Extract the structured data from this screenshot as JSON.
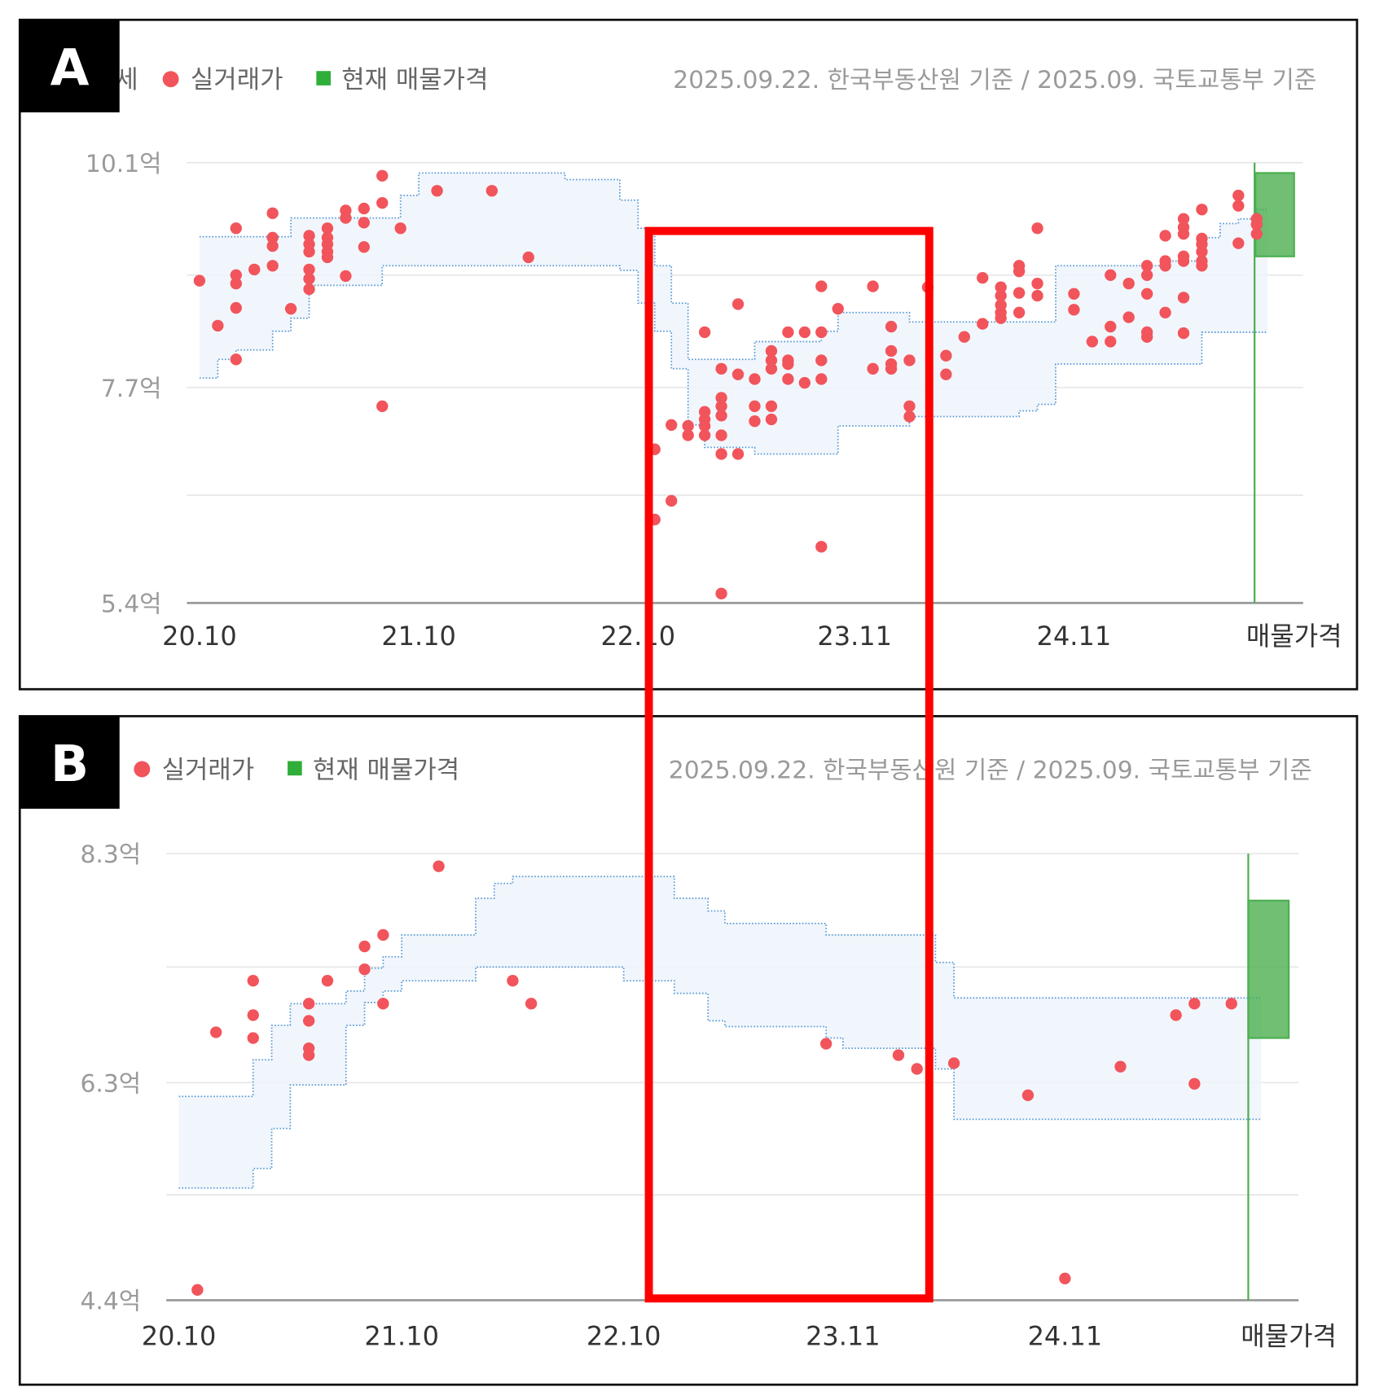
{
  "colors": {
    "trade_dot": "#f2545b",
    "listing": "#4caf50",
    "band_line": "#5b9bd5",
    "band_fill": "#eef4fc",
    "annotation": "#ff0000",
    "panel_label_bg": "#000000"
  },
  "annotation": {
    "type": "highlight-rectangle",
    "color": "#ff0000",
    "date_range": [
      "2022-10",
      "2024-03"
    ]
  },
  "chart_data": [
    {
      "type": "scatter",
      "panel_label": "A",
      "legend": {
        "band": "세",
        "trade": "실거래가",
        "listing": "현재 매물가격",
        "placement": "top-left"
      },
      "source_note": "2025.09.22. 한국부동산원 기준 / 2025.09. 국토교통부 기준",
      "y_unit": "억",
      "ylim": [
        5.4,
        10.1
      ],
      "y_ticks": [
        {
          "value": 10.1,
          "label": "10.1억"
        },
        {
          "value": 7.7,
          "label": "7.7억"
        },
        {
          "value": 5.4,
          "label": "5.4억"
        }
      ],
      "grid_values": [
        10.1,
        8.9,
        7.7,
        6.55,
        5.4
      ],
      "grid": true,
      "x_ticks": [
        {
          "date": "2020-10",
          "label": "20.10"
        },
        {
          "date": "2021-10",
          "label": "21.10"
        },
        {
          "date": "2022-10",
          "label": "22.10"
        },
        {
          "date": "2023-11",
          "label": "23.11"
        },
        {
          "date": "2024-11",
          "label": "24.11"
        }
      ],
      "listing_label": "매물가격",
      "listing_range": [
        9.1,
        9.99
      ],
      "trades": [
        [
          "2020-10",
          [
            8.84
          ]
        ],
        [
          "2020-11",
          [
            8.36
          ]
        ],
        [
          "2020-12",
          [
            9.4,
            8.9,
            8.81,
            8.55,
            8.0
          ]
        ],
        [
          "2021-01",
          [
            8.96
          ]
        ],
        [
          "2021-02",
          [
            9.56,
            9.3,
            9.21,
            9.0
          ]
        ],
        [
          "2021-03",
          [
            8.54
          ]
        ],
        [
          "2021-04",
          [
            9.32,
            9.23,
            9.15,
            8.96,
            8.86,
            8.75
          ]
        ],
        [
          "2021-05",
          [
            9.4,
            9.3,
            9.23,
            9.15,
            9.09
          ]
        ],
        [
          "2021-06",
          [
            9.59,
            9.51,
            8.89
          ]
        ],
        [
          "2021-07",
          [
            9.61,
            9.46,
            9.2
          ]
        ],
        [
          "2021-08",
          [
            9.96,
            9.67,
            7.5
          ]
        ],
        [
          "2021-09",
          [
            9.4
          ]
        ],
        [
          "2021-11",
          [
            9.8
          ]
        ],
        [
          "2022-02",
          [
            9.8
          ]
        ],
        [
          "2022-04",
          [
            9.09
          ]
        ],
        [
          "2022-11",
          [
            7.04,
            6.29
          ]
        ],
        [
          "2022-12",
          [
            7.3,
            6.49
          ]
        ],
        [
          "2023-01",
          [
            7.29,
            7.19
          ]
        ],
        [
          "2023-02",
          [
            8.29,
            7.44,
            7.36,
            7.29,
            7.19
          ]
        ],
        [
          "2023-03",
          [
            7.9,
            7.59,
            7.5,
            7.4,
            7.19,
            6.99,
            5.5
          ]
        ],
        [
          "2023-04",
          [
            8.59,
            7.84,
            6.99
          ]
        ],
        [
          "2023-05",
          [
            7.79,
            7.5,
            7.34
          ]
        ],
        [
          "2023-06",
          [
            8.09,
            7.99,
            7.9,
            7.5,
            7.36
          ]
        ],
        [
          "2023-07",
          [
            8.29,
            7.99,
            7.95,
            7.79
          ]
        ],
        [
          "2023-08",
          [
            8.29,
            7.75
          ]
        ],
        [
          "2023-09",
          [
            8.78,
            8.29,
            7.99,
            7.79,
            6.0
          ]
        ],
        [
          "2023-10",
          [
            8.54
          ]
        ],
        [
          "2023-12",
          [
            8.78,
            7.9
          ]
        ],
        [
          "2024-01",
          [
            8.35,
            8.09,
            7.95,
            7.9
          ]
        ],
        [
          "2024-02",
          [
            7.99,
            7.5,
            7.39
          ]
        ],
        [
          "2024-03",
          [
            8.77
          ]
        ],
        [
          "2024-04",
          [
            8.04,
            7.84
          ]
        ],
        [
          "2024-05",
          [
            8.24
          ]
        ],
        [
          "2024-06",
          [
            8.87,
            8.38
          ]
        ],
        [
          "2024-07",
          [
            8.77,
            8.68,
            8.58,
            8.5,
            8.44
          ]
        ],
        [
          "2024-08",
          [
            9.0,
            8.94,
            8.71,
            8.5
          ]
        ],
        [
          "2024-09",
          [
            9.4,
            8.81,
            8.68
          ]
        ],
        [
          "2024-11",
          [
            8.7,
            8.53
          ]
        ],
        [
          "2024-12",
          [
            8.19
          ]
        ],
        [
          "2025-01",
          [
            8.9,
            8.35,
            8.19
          ]
        ],
        [
          "2025-02",
          [
            8.81,
            8.45
          ]
        ],
        [
          "2025-03",
          [
            9.0,
            8.9,
            8.7,
            8.29,
            8.24
          ]
        ],
        [
          "2025-04",
          [
            9.32,
            9.05,
            9.0,
            8.5
          ]
        ],
        [
          "2025-05",
          [
            9.5,
            9.41,
            9.34,
            9.1,
            9.05,
            8.66,
            8.28
          ]
        ],
        [
          "2025-06",
          [
            9.6,
            9.29,
            9.23,
            9.15,
            9.05,
            9.0
          ]
        ],
        [
          "2025-08",
          [
            9.75,
            9.64,
            9.24
          ]
        ],
        [
          "2025-09",
          [
            9.5,
            9.44,
            9.34
          ]
        ]
      ],
      "band": [
        [
          "2020-10",
          9.31,
          7.8
        ],
        [
          "2020-11",
          9.31,
          8.0
        ],
        [
          "2020-12",
          9.31,
          8.1
        ],
        [
          "2021-01",
          9.31,
          8.1
        ],
        [
          "2021-02",
          9.31,
          8.3
        ],
        [
          "2021-03",
          9.51,
          8.44
        ],
        [
          "2021-04",
          9.51,
          8.79
        ],
        [
          "2021-05",
          9.51,
          8.79
        ],
        [
          "2021-06",
          9.51,
          8.79
        ],
        [
          "2021-07",
          9.51,
          8.79
        ],
        [
          "2021-08",
          9.51,
          9.0
        ],
        [
          "2021-09",
          9.75,
          9.0
        ],
        [
          "2021-10",
          9.99,
          9.0
        ],
        [
          "2021-11",
          9.99,
          9.0
        ],
        [
          "2021-12",
          9.99,
          9.0
        ],
        [
          "2022-01",
          9.99,
          9.0
        ],
        [
          "2022-02",
          9.99,
          9.0
        ],
        [
          "2022-03",
          9.99,
          9.0
        ],
        [
          "2022-04",
          9.99,
          9.0
        ],
        [
          "2022-05",
          9.99,
          9.0
        ],
        [
          "2022-06",
          9.92,
          9.0
        ],
        [
          "2022-07",
          9.92,
          9.0
        ],
        [
          "2022-08",
          9.92,
          9.0
        ],
        [
          "2022-09",
          9.7,
          8.95
        ],
        [
          "2022-10",
          9.4,
          8.6
        ],
        [
          "2022-11",
          9.0,
          8.3
        ],
        [
          "2022-12",
          8.6,
          7.9
        ],
        [
          "2023-01",
          8.0,
          7.3
        ],
        [
          "2023-02",
          8.0,
          7.06
        ],
        [
          "2023-03",
          8.0,
          7.06
        ],
        [
          "2023-04",
          8.0,
          7.06
        ],
        [
          "2023-05",
          8.19,
          6.99
        ],
        [
          "2023-06",
          8.19,
          6.99
        ],
        [
          "2023-07",
          8.19,
          6.99
        ],
        [
          "2023-08",
          8.19,
          6.99
        ],
        [
          "2023-09",
          8.3,
          6.99
        ],
        [
          "2023-10",
          8.5,
          7.29
        ],
        [
          "2023-11",
          8.5,
          7.29
        ],
        [
          "2023-12",
          8.5,
          7.29
        ],
        [
          "2024-01",
          8.5,
          7.29
        ],
        [
          "2024-02",
          8.4,
          7.39
        ],
        [
          "2024-03",
          8.4,
          7.39
        ],
        [
          "2024-04",
          8.4,
          7.39
        ],
        [
          "2024-05",
          8.4,
          7.39
        ],
        [
          "2024-06",
          8.4,
          7.39
        ],
        [
          "2024-07",
          8.4,
          7.39
        ],
        [
          "2024-08",
          8.4,
          7.45
        ],
        [
          "2024-09",
          8.4,
          7.52
        ],
        [
          "2024-10",
          9.0,
          7.95
        ],
        [
          "2024-11",
          9.0,
          7.95
        ],
        [
          "2024-12",
          9.0,
          7.95
        ],
        [
          "2025-01",
          9.0,
          7.95
        ],
        [
          "2025-02",
          9.0,
          7.95
        ],
        [
          "2025-03",
          9.0,
          7.95
        ],
        [
          "2025-04",
          9.05,
          7.95
        ],
        [
          "2025-05",
          9.05,
          7.95
        ],
        [
          "2025-06",
          9.3,
          8.29
        ],
        [
          "2025-07",
          9.45,
          8.29
        ],
        [
          "2025-08",
          9.5,
          8.29
        ],
        [
          "2025-09",
          9.6,
          8.29
        ]
      ]
    },
    {
      "type": "scatter",
      "panel_label": "B",
      "legend": {
        "trade": "실거래가",
        "listing": "현재 매물가격",
        "placement": "top-left"
      },
      "source_note": "2025.09.22. 한국부동산원 기준 / 2025.09. 국토교통부 기준",
      "y_unit": "억",
      "ylim": [
        4.4,
        8.3
      ],
      "y_ticks": [
        {
          "value": 8.3,
          "label": "8.3억"
        },
        {
          "value": 6.3,
          "label": "6.3억"
        },
        {
          "value": 4.4,
          "label": "4.4억"
        }
      ],
      "grid_values": [
        8.3,
        7.31,
        6.3,
        5.32,
        4.4
      ],
      "grid": true,
      "x_ticks": [
        {
          "date": "2020-10",
          "label": "20.10"
        },
        {
          "date": "2021-10",
          "label": "21.10"
        },
        {
          "date": "2022-10",
          "label": "22.10"
        },
        {
          "date": "2023-11",
          "label": "23.11"
        },
        {
          "date": "2024-11",
          "label": "24.11"
        }
      ],
      "listing_label": "매물가격",
      "listing_range": [
        6.69,
        7.89
      ],
      "trades": [
        [
          "2020-11",
          [
            4.49
          ]
        ],
        [
          "2020-12",
          [
            6.74
          ]
        ],
        [
          "2021-02",
          [
            7.19,
            6.89,
            6.69
          ]
        ],
        [
          "2021-05",
          [
            6.99,
            6.84,
            6.6,
            6.54
          ]
        ],
        [
          "2021-06",
          [
            7.19
          ]
        ],
        [
          "2021-08",
          [
            7.49,
            7.29
          ]
        ],
        [
          "2021-09",
          [
            7.59,
            6.99
          ]
        ],
        [
          "2021-12",
          [
            8.19
          ]
        ],
        [
          "2022-04",
          [
            7.19
          ]
        ],
        [
          "2022-05",
          [
            6.99
          ]
        ],
        [
          "2023-10",
          [
            6.64
          ]
        ],
        [
          "2024-02",
          [
            6.54
          ]
        ],
        [
          "2024-03",
          [
            6.42
          ]
        ],
        [
          "2024-05",
          [
            6.47
          ]
        ],
        [
          "2024-09",
          [
            6.19
          ]
        ],
        [
          "2024-11",
          [
            4.59
          ]
        ],
        [
          "2025-02",
          [
            6.44
          ]
        ],
        [
          "2025-05",
          [
            6.89
          ]
        ],
        [
          "2025-06",
          [
            6.99,
            6.29
          ]
        ],
        [
          "2025-08",
          [
            6.99
          ]
        ]
      ],
      "band": [
        [
          "2020-10",
          6.18,
          5.38
        ],
        [
          "2020-11",
          6.18,
          5.38
        ],
        [
          "2020-12",
          6.18,
          5.38
        ],
        [
          "2021-01",
          6.18,
          5.38
        ],
        [
          "2021-02",
          6.5,
          5.55
        ],
        [
          "2021-03",
          6.8,
          5.9
        ],
        [
          "2021-04",
          6.99,
          6.28
        ],
        [
          "2021-05",
          6.99,
          6.28
        ],
        [
          "2021-06",
          6.99,
          6.28
        ],
        [
          "2021-07",
          7.1,
          6.8
        ],
        [
          "2021-08",
          7.3,
          7.0
        ],
        [
          "2021-09",
          7.4,
          7.1
        ],
        [
          "2021-10",
          7.59,
          7.19
        ],
        [
          "2021-11",
          7.59,
          7.19
        ],
        [
          "2021-12",
          7.59,
          7.19
        ],
        [
          "2022-01",
          7.59,
          7.19
        ],
        [
          "2022-02",
          7.91,
          7.31
        ],
        [
          "2022-03",
          8.04,
          7.31
        ],
        [
          "2022-04",
          8.1,
          7.31
        ],
        [
          "2022-05",
          8.1,
          7.31
        ],
        [
          "2022-06",
          8.1,
          7.31
        ],
        [
          "2022-07",
          8.1,
          7.31
        ],
        [
          "2022-08",
          8.1,
          7.31
        ],
        [
          "2022-09",
          8.1,
          7.31
        ],
        [
          "2022-10",
          8.1,
          7.19
        ],
        [
          "2022-11",
          8.1,
          7.19
        ],
        [
          "2022-12",
          8.1,
          7.19
        ],
        [
          "2023-01",
          7.91,
          7.08
        ],
        [
          "2023-02",
          7.91,
          7.08
        ],
        [
          "2023-03",
          7.8,
          6.84
        ],
        [
          "2023-04",
          7.69,
          6.79
        ],
        [
          "2023-05",
          7.69,
          6.79
        ],
        [
          "2023-06",
          7.69,
          6.79
        ],
        [
          "2023-07",
          7.69,
          6.79
        ],
        [
          "2023-08",
          7.69,
          6.79
        ],
        [
          "2023-09",
          7.69,
          6.79
        ],
        [
          "2023-10",
          7.59,
          6.69
        ],
        [
          "2023-11",
          7.59,
          6.6
        ],
        [
          "2023-12",
          7.59,
          6.6
        ],
        [
          "2024-01",
          7.59,
          6.6
        ],
        [
          "2024-02",
          7.59,
          6.6
        ],
        [
          "2024-03",
          7.59,
          6.6
        ],
        [
          "2024-04",
          7.35,
          6.42
        ],
        [
          "2024-05",
          7.04,
          5.98
        ],
        [
          "2024-06",
          7.04,
          5.98
        ],
        [
          "2024-07",
          7.04,
          5.98
        ],
        [
          "2024-08",
          7.04,
          5.98
        ],
        [
          "2024-09",
          7.04,
          5.98
        ],
        [
          "2024-10",
          7.04,
          5.98
        ],
        [
          "2024-11",
          7.04,
          5.98
        ],
        [
          "2024-12",
          7.04,
          5.98
        ],
        [
          "2025-01",
          7.04,
          5.98
        ],
        [
          "2025-02",
          7.04,
          5.98
        ],
        [
          "2025-03",
          7.04,
          5.98
        ],
        [
          "2025-04",
          7.04,
          5.98
        ],
        [
          "2025-05",
          7.04,
          5.98
        ],
        [
          "2025-06",
          7.04,
          5.98
        ],
        [
          "2025-07",
          7.04,
          5.98
        ],
        [
          "2025-08",
          7.04,
          5.98
        ],
        [
          "2025-09",
          7.04,
          5.98
        ]
      ]
    }
  ]
}
